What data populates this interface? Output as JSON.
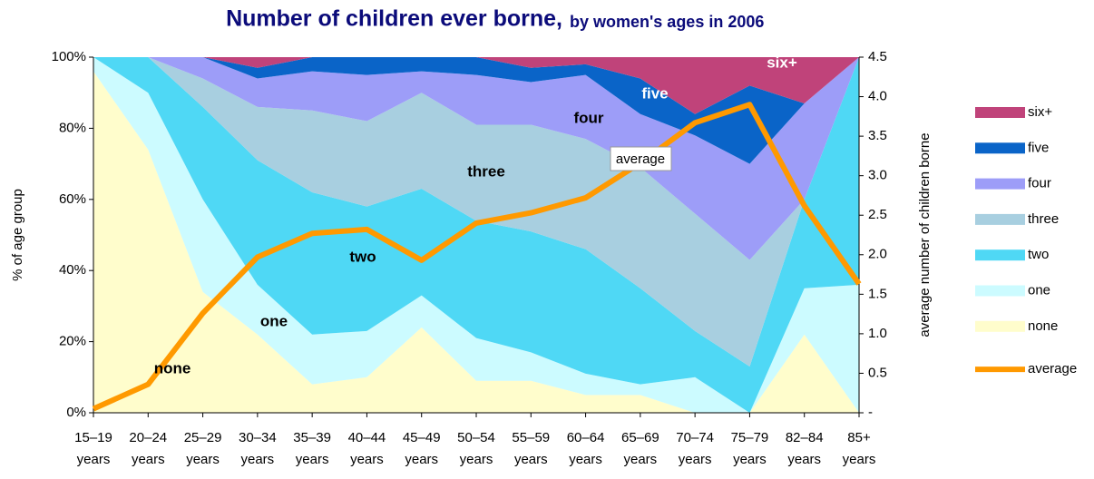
{
  "chart_data": {
    "type": "area",
    "title": "Number of children ever borne,",
    "subtitle": "by women's ages in 2006",
    "ylabel": "% of age group",
    "y2label": "average number of children borne",
    "categories": [
      "15–19 years",
      "20–24 years",
      "25–29 years",
      "30–34 years",
      "35–39 years",
      "40–44 years",
      "45–49 years",
      "50–54 years",
      "55–59 years",
      "60–64 years",
      "65–69 years",
      "70–74 years",
      "75–79 years",
      "82–84 years",
      "85+ years"
    ],
    "stacked": true,
    "series": [
      {
        "name": "none",
        "color": "#fffdcc",
        "values": [
          96,
          74,
          34,
          22,
          8,
          10,
          24,
          9,
          9,
          5,
          5,
          0,
          0,
          22,
          0
        ]
      },
      {
        "name": "one",
        "color": "#ccfbff",
        "values": [
          4,
          16,
          26,
          14,
          14,
          13,
          9,
          12,
          8,
          6,
          3,
          10,
          0,
          13,
          36
        ]
      },
      {
        "name": "two",
        "color": "#4fd8f5",
        "values": [
          0,
          10,
          26,
          35,
          40,
          35,
          30,
          33,
          34,
          35,
          27,
          13,
          13,
          25,
          64
        ]
      },
      {
        "name": "three",
        "color": "#a8cfe0",
        "values": [
          0,
          0,
          8,
          15,
          23,
          24,
          27,
          27,
          30,
          31,
          34,
          33,
          30,
          0,
          0
        ]
      },
      {
        "name": "four",
        "color": "#9d9df8",
        "values": [
          0,
          0,
          6,
          8,
          11,
          13,
          6,
          14,
          12,
          18,
          15,
          22,
          27,
          27,
          0
        ]
      },
      {
        "name": "five",
        "color": "#0a64c8",
        "values": [
          0,
          0,
          0,
          3,
          4,
          5,
          4,
          5,
          4,
          3,
          10,
          6,
          22,
          0,
          0
        ]
      },
      {
        "name": "six+",
        "color": "#c0437a",
        "values": [
          0,
          0,
          0,
          3,
          0,
          0,
          0,
          0,
          3,
          2,
          6,
          16,
          8,
          13,
          0
        ]
      },
      {
        "name": "average",
        "color": "#ff9900",
        "type": "line",
        "axis": "y2",
        "values": [
          0.05,
          0.36,
          1.26,
          1.97,
          2.27,
          2.32,
          1.93,
          2.4,
          2.53,
          2.72,
          3.16,
          3.67,
          3.9,
          2.62,
          1.63
        ]
      }
    ],
    "ylim": [
      0,
      100
    ],
    "yticks": [
      {
        "value": 0,
        "label": "0%"
      },
      {
        "value": 20,
        "label": "20%"
      },
      {
        "value": 40,
        "label": "40%"
      },
      {
        "value": 60,
        "label": "60%"
      },
      {
        "value": 80,
        "label": "80%"
      },
      {
        "value": 100,
        "label": "100%"
      }
    ],
    "y2lim": [
      0,
      4.5
    ],
    "y2ticks": [
      {
        "value": 0,
        "label": "-"
      },
      0.5,
      {
        "value": 1,
        "label": "1.0"
      },
      1.5,
      {
        "value": 2,
        "label": "2.0"
      },
      2.5,
      {
        "value": 3,
        "label": "3.0"
      },
      3.5,
      {
        "value": 4,
        "label": "4.0"
      },
      4.5
    ],
    "legend": "right"
  }
}
